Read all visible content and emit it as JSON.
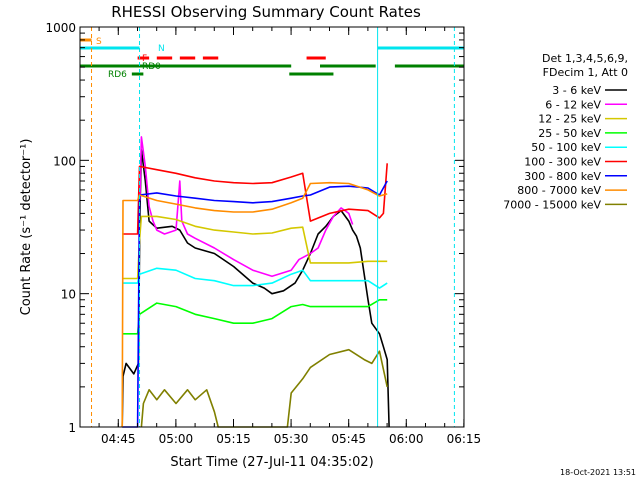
{
  "chart_data": {
    "type": "line",
    "title": "RHESSI Observing Summary Count Rates",
    "xlabel": "Start Time (27-Jul-11 04:35:02)",
    "ylabel": "Count Rate (s⁻¹ detector⁻¹)",
    "y_scale": "log",
    "ylim": [
      1,
      1000
    ],
    "xlim_minutes": [
      0,
      100
    ],
    "x_ticks": [
      "04:45",
      "05:00",
      "05:15",
      "05:30",
      "05:45",
      "06:00",
      "06:15"
    ],
    "y_ticks": [
      "1",
      "10",
      "100",
      "1000"
    ],
    "grid": false,
    "legend_position": "right",
    "legend_header": [
      "Det 1,3,4,5,6,9,",
      "FDecim 1, Att 0"
    ],
    "footer_date": "18-Oct-2021 13:51",
    "flag_bars": [
      {
        "label": "S",
        "color": "#ff8c00",
        "segments": [
          [
            0,
            3
          ]
        ]
      },
      {
        "label": "N",
        "color": "#00e5ee",
        "segments": [
          [
            0,
            15.5
          ],
          [
            77.5,
            100
          ]
        ]
      },
      {
        "label": "F",
        "color": "#ff0000",
        "segments": [
          [
            15,
            18
          ],
          [
            20,
            24
          ],
          [
            26,
            30
          ],
          [
            32,
            36
          ],
          [
            59,
            64
          ]
        ]
      },
      {
        "label": "RD0",
        "color": "#008000",
        "segments": [
          [
            0,
            55
          ],
          [
            62.5,
            77
          ],
          [
            82,
            100
          ]
        ]
      },
      {
        "label": "RD6",
        "color": "#008000",
        "segments": [
          [
            13.5,
            16.5
          ],
          [
            54.5,
            66
          ]
        ]
      }
    ],
    "vertical_markers": [
      {
        "minute": 3,
        "color": "#ff8c00",
        "style": "dashed"
      },
      {
        "minute": 15.5,
        "color": "#00e5ee",
        "style": "dashed"
      },
      {
        "minute": 77.5,
        "color": "#00e5ee",
        "style": "solid"
      },
      {
        "minute": 97.5,
        "color": "#00e5ee",
        "style": "dashed"
      }
    ],
    "series": [
      {
        "name": "3 - 6 keV",
        "color": "#000000",
        "points": [
          [
            11,
            1
          ],
          [
            11.2,
            2.4
          ],
          [
            12,
            3
          ],
          [
            14,
            2.5
          ],
          [
            15.2,
            3
          ],
          [
            15.6,
            40
          ],
          [
            16,
            120
          ],
          [
            17,
            70
          ],
          [
            18,
            35
          ],
          [
            20,
            31
          ],
          [
            24,
            32
          ],
          [
            26,
            30
          ],
          [
            28,
            24
          ],
          [
            30,
            22
          ],
          [
            35,
            20
          ],
          [
            40,
            16
          ],
          [
            45,
            12
          ],
          [
            48,
            11
          ],
          [
            50,
            10
          ],
          [
            53,
            10.5
          ],
          [
            56,
            12
          ],
          [
            58,
            15
          ],
          [
            60,
            20
          ],
          [
            62,
            28
          ],
          [
            64,
            32
          ],
          [
            66,
            38
          ],
          [
            68,
            42
          ],
          [
            70,
            35
          ],
          [
            71,
            30
          ],
          [
            72,
            27
          ],
          [
            73,
            22
          ],
          [
            74,
            14
          ],
          [
            75,
            9
          ],
          [
            76,
            6
          ],
          [
            78,
            5
          ],
          [
            79,
            4
          ],
          [
            80,
            3.2
          ],
          [
            80.5,
            1
          ]
        ]
      },
      {
        "name": "6 - 12 keV",
        "color": "#ff00ff",
        "points": [
          [
            15.6,
            50
          ],
          [
            16,
            150
          ],
          [
            17,
            90
          ],
          [
            18,
            45
          ],
          [
            19,
            35
          ],
          [
            20,
            30
          ],
          [
            22,
            28
          ],
          [
            25,
            30
          ],
          [
            26,
            70
          ],
          [
            26.5,
            35
          ],
          [
            28,
            28
          ],
          [
            30,
            26
          ],
          [
            35,
            22
          ],
          [
            40,
            18
          ],
          [
            45,
            15
          ],
          [
            50,
            13.5
          ],
          [
            55,
            15
          ],
          [
            57,
            18
          ],
          [
            60,
            20
          ],
          [
            62,
            22
          ],
          [
            64,
            30
          ],
          [
            66,
            38
          ],
          [
            68,
            44
          ],
          [
            70,
            40
          ],
          [
            71,
            33
          ]
        ]
      },
      {
        "name": "12 - 25 keV",
        "color": "#d4c800",
        "points": [
          [
            11,
            13
          ],
          [
            15,
            13
          ],
          [
            15.5,
            25
          ],
          [
            16,
            38
          ],
          [
            20,
            38
          ],
          [
            25,
            36
          ],
          [
            30,
            32
          ],
          [
            35,
            30
          ],
          [
            40,
            29
          ],
          [
            45,
            28
          ],
          [
            50,
            28.5
          ],
          [
            55,
            31
          ],
          [
            58,
            31.5
          ],
          [
            60,
            17
          ],
          [
            65,
            17
          ],
          [
            70,
            17
          ],
          [
            75,
            17.5
          ],
          [
            80,
            17.5
          ]
        ]
      },
      {
        "name": "25 - 50 keV",
        "color": "#00ff00",
        "points": [
          [
            11,
            5
          ],
          [
            15,
            5
          ],
          [
            15.5,
            7
          ],
          [
            20,
            8.5
          ],
          [
            25,
            8
          ],
          [
            30,
            7
          ],
          [
            35,
            6.5
          ],
          [
            40,
            6
          ],
          [
            45,
            6
          ],
          [
            50,
            6.5
          ],
          [
            55,
            8
          ],
          [
            58,
            8.3
          ],
          [
            60,
            8
          ],
          [
            65,
            8
          ],
          [
            70,
            8
          ],
          [
            75,
            8
          ],
          [
            78,
            9
          ],
          [
            80,
            9
          ]
        ]
      },
      {
        "name": "50 - 100 keV",
        "color": "#00ffff",
        "points": [
          [
            11,
            12
          ],
          [
            15,
            12
          ],
          [
            15.5,
            14
          ],
          [
            20,
            15.5
          ],
          [
            25,
            15
          ],
          [
            30,
            13
          ],
          [
            35,
            12.5
          ],
          [
            40,
            11.5
          ],
          [
            45,
            11.5
          ],
          [
            50,
            12
          ],
          [
            55,
            14
          ],
          [
            58,
            15
          ],
          [
            60,
            12.5
          ],
          [
            65,
            12.5
          ],
          [
            70,
            12.5
          ],
          [
            75,
            12.5
          ],
          [
            78,
            11
          ],
          [
            80,
            12
          ]
        ]
      },
      {
        "name": "100 - 300 keV",
        "color": "#ff0000",
        "points": [
          [
            11,
            28
          ],
          [
            15,
            28
          ],
          [
            15.5,
            90
          ],
          [
            20,
            85
          ],
          [
            25,
            80
          ],
          [
            30,
            74
          ],
          [
            35,
            70
          ],
          [
            40,
            68
          ],
          [
            45,
            67
          ],
          [
            50,
            68
          ],
          [
            55,
            75
          ],
          [
            58,
            80
          ],
          [
            60,
            35
          ],
          [
            65,
            40
          ],
          [
            70,
            43
          ],
          [
            75,
            42
          ],
          [
            78,
            37
          ],
          [
            79,
            40
          ],
          [
            80,
            95
          ]
        ]
      },
      {
        "name": "300 - 800 keV",
        "color": "#0000ff",
        "points": [
          [
            11,
            1
          ],
          [
            15,
            1
          ],
          [
            15.5,
            55
          ],
          [
            20,
            57
          ],
          [
            25,
            54
          ],
          [
            30,
            52
          ],
          [
            35,
            50
          ],
          [
            40,
            49
          ],
          [
            45,
            48
          ],
          [
            50,
            49
          ],
          [
            55,
            52
          ],
          [
            58,
            54
          ],
          [
            60,
            55
          ],
          [
            65,
            63
          ],
          [
            70,
            64
          ],
          [
            75,
            62
          ],
          [
            78,
            55
          ],
          [
            80,
            70
          ]
        ]
      },
      {
        "name": "800 - 7000 keV",
        "color": "#ff8c00",
        "points": [
          [
            11,
            1
          ],
          [
            11.2,
            50
          ],
          [
            15,
            50
          ],
          [
            15.5,
            55
          ],
          [
            20,
            50
          ],
          [
            25,
            47
          ],
          [
            30,
            44
          ],
          [
            35,
            42
          ],
          [
            40,
            41
          ],
          [
            45,
            41
          ],
          [
            50,
            43
          ],
          [
            55,
            48
          ],
          [
            58,
            52
          ],
          [
            60,
            67
          ],
          [
            65,
            68
          ],
          [
            70,
            67
          ],
          [
            75,
            60
          ],
          [
            78,
            54
          ],
          [
            80,
            56
          ]
        ]
      },
      {
        "name": "7000 - 15000 keV",
        "color": "#808000",
        "points": [
          [
            16,
            1
          ],
          [
            16.5,
            1.5
          ],
          [
            18,
            1.9
          ],
          [
            20,
            1.6
          ],
          [
            22,
            1.9
          ],
          [
            25,
            1.5
          ],
          [
            28,
            1.9
          ],
          [
            30,
            1.6
          ],
          [
            33,
            1.9
          ],
          [
            35,
            1.3
          ],
          [
            36,
            1
          ],
          [
            54,
            1
          ],
          [
            55,
            1.8
          ],
          [
            58,
            2.3
          ],
          [
            60,
            2.8
          ],
          [
            65,
            3.5
          ],
          [
            70,
            3.8
          ],
          [
            74,
            3.2
          ],
          [
            76,
            3
          ],
          [
            78,
            3.7
          ],
          [
            80,
            2
          ]
        ]
      }
    ]
  }
}
